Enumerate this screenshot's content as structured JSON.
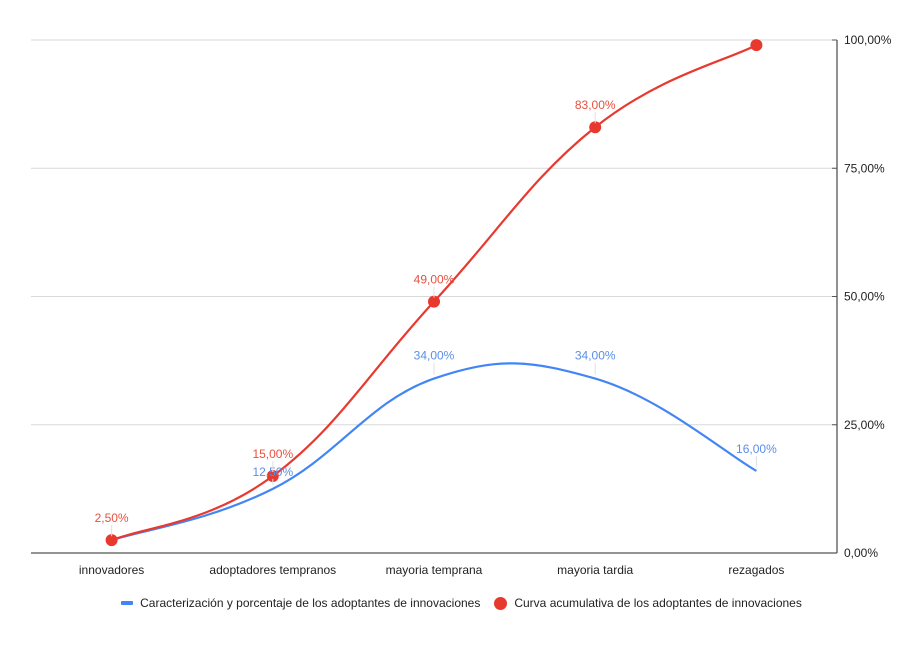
{
  "chart_data": {
    "type": "line",
    "title": "",
    "xlabel": "",
    "ylabel": "",
    "categories": [
      "innovadores",
      "adoptadores tempranos",
      "mayoria temprana",
      "mayoria tardia",
      "rezagados"
    ],
    "series": [
      {
        "name": "Caracterización y porcentaje de los adoptantes de innovaciones",
        "color": "#4285f4",
        "style": "smooth-line",
        "values": [
          2.5,
          12.5,
          34.0,
          34.0,
          16.0
        ],
        "labels": [
          "",
          "12,50%",
          "34,00%",
          "34,00%",
          "16,00%"
        ]
      },
      {
        "name": "Curva acumulativa de los adoptantes de innovaciones",
        "color": "#e8392f",
        "style": "smooth-line-with-markers",
        "values": [
          2.5,
          15.0,
          49.0,
          83.0,
          99.0
        ],
        "labels": [
          "2,50%",
          "15,00%",
          "49,00%",
          "83,00%",
          ""
        ]
      }
    ],
    "y_axis": {
      "position": "right",
      "ylim": [
        0,
        100
      ],
      "ticks": [
        0,
        25,
        50,
        75,
        100
      ],
      "tick_labels": [
        "0,00%",
        "25,00%",
        "50,00%",
        "75,00%",
        "100,00%"
      ]
    },
    "grid": true,
    "legend_position": "bottom"
  },
  "legend": {
    "items": [
      {
        "label": "Caracterización y porcentaje de los adoptantes de innovaciones",
        "color": "#4285f4",
        "marker": "line"
      },
      {
        "label": "Curva acumulativa de los adoptantes de innovaciones",
        "color": "#e8392f",
        "marker": "dot"
      }
    ]
  }
}
